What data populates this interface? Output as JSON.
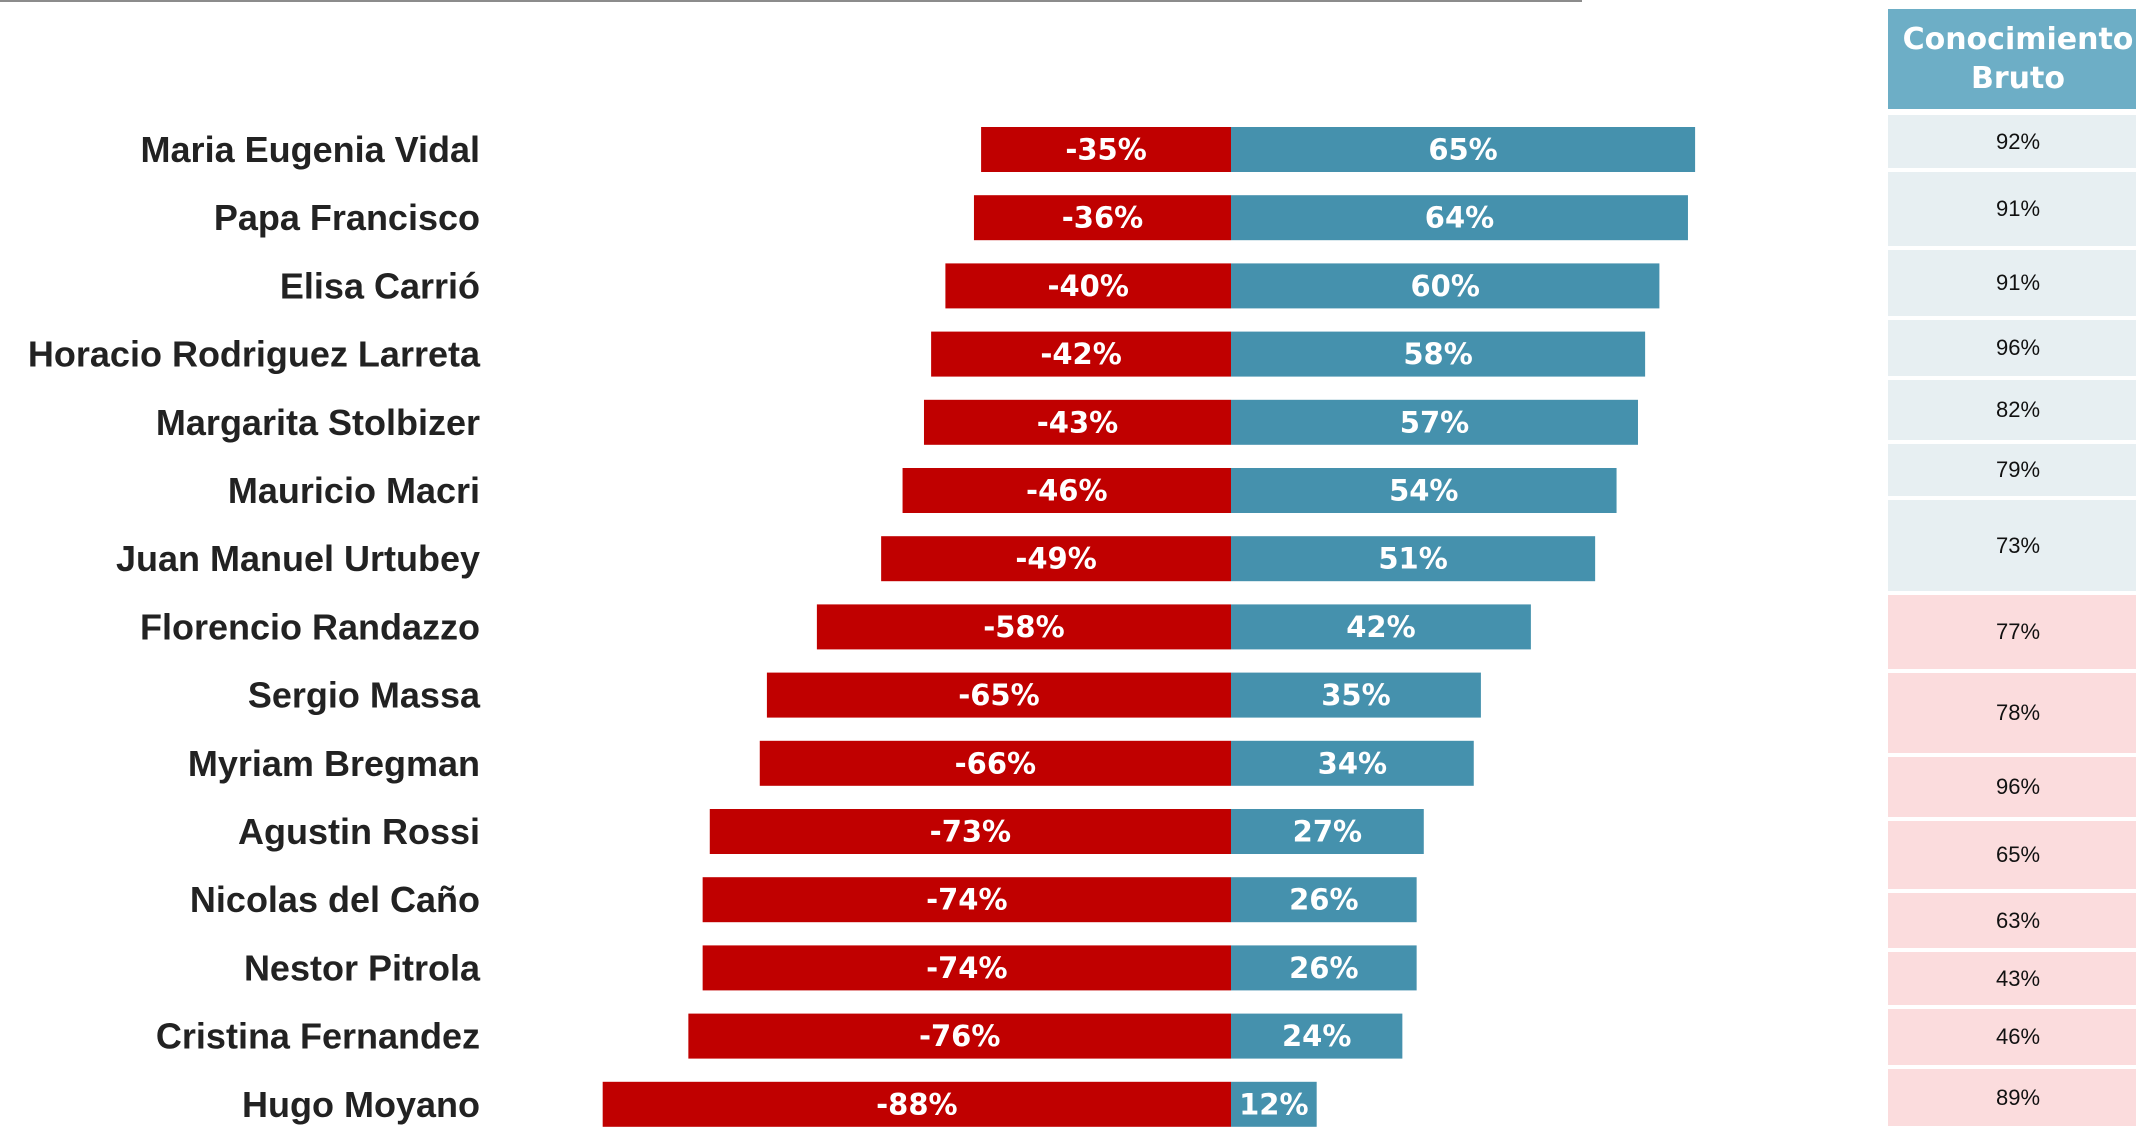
{
  "colors": {
    "negative": "#c00000",
    "positive": "#4591ad",
    "header_bg": "#6daec6",
    "cell_positive_bg": "#e7eff2",
    "cell_negative_bg": "#fbdcdd"
  },
  "knowledge": {
    "header_line1": "Conocimiento",
    "header_line2": "Bruto",
    "values": [
      "92%",
      "91%",
      "91%",
      "96%",
      "82%",
      "79%",
      "73%",
      "77%",
      "78%",
      "96%",
      "65%",
      "63%",
      "43%",
      "46%",
      "89%"
    ]
  },
  "chart_data": {
    "type": "bar",
    "orientation": "horizontal",
    "stacked": "diverging",
    "categories": [
      "Maria Eugenia Vidal",
      "Papa Francisco",
      "Elisa Carrió",
      "Horacio Rodriguez Larreta",
      "Margarita Stolbizer",
      "Mauricio Macri",
      "Juan Manuel Urtubey",
      "Florencio Randazzo",
      "Sergio Massa",
      "Myriam Bregman",
      "Agustin Rossi",
      "Nicolas del Caño",
      "Nestor Pitrola",
      "Cristina Fernandez",
      "Hugo Moyano"
    ],
    "series": [
      {
        "values": [
          -35,
          -36,
          -40,
          -42,
          -43,
          -46,
          -49,
          -58,
          -65,
          -66,
          -73,
          -74,
          -74,
          -76,
          -88
        ],
        "labels": [
          "-35%",
          "-36%",
          "-40%",
          "-42%",
          "-43%",
          "-46%",
          "-49%",
          "-58%",
          "-65%",
          "-66%",
          "-73%",
          "-74%",
          "-74%",
          "-76%",
          "-88%"
        ]
      },
      {
        "values": [
          65,
          64,
          60,
          58,
          57,
          54,
          51,
          42,
          35,
          34,
          27,
          26,
          26,
          24,
          12
        ],
        "labels": [
          "65%",
          "64%",
          "60%",
          "58%",
          "57%",
          "54%",
          "51%",
          "42%",
          "35%",
          "34%",
          "27%",
          "26%",
          "26%",
          "24%",
          "12%"
        ]
      }
    ]
  }
}
